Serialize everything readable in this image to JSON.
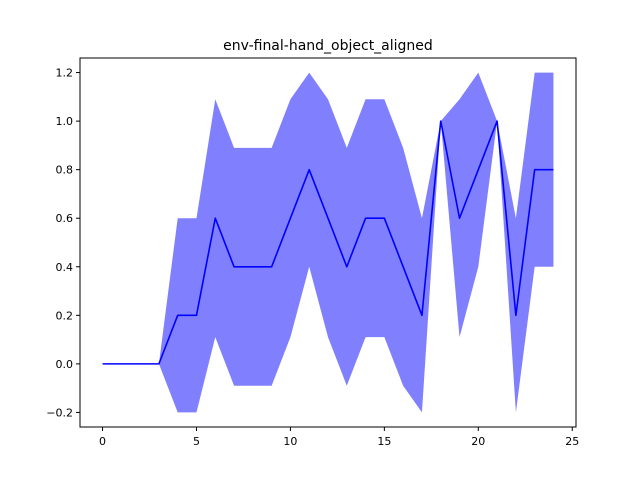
{
  "chart_data": {
    "type": "line",
    "title": "env-final-hand_object_aligned",
    "xlabel": "",
    "ylabel": "",
    "xlim": [
      -1.2,
      25.2
    ],
    "ylim": [
      -0.26,
      1.26
    ],
    "xticks": [
      0,
      5,
      10,
      15,
      20,
      25
    ],
    "yticks": [
      -0.2,
      0.0,
      0.2,
      0.4,
      0.6,
      0.8,
      1.0,
      1.2
    ],
    "xtick_labels": [
      "0",
      "5",
      "10",
      "15",
      "20",
      "25"
    ],
    "ytick_labels": [
      "−0.2",
      "0.0",
      "0.2",
      "0.4",
      "0.6",
      "0.8",
      "1.0",
      "1.2"
    ],
    "grid": false,
    "legend": "none",
    "series": [
      {
        "x": [
          0,
          1,
          2,
          3,
          4,
          5,
          6,
          7,
          8,
          9,
          10,
          11,
          12,
          13,
          14,
          15,
          16,
          17,
          18,
          19,
          20,
          21,
          22,
          23,
          24
        ],
        "mean": [
          0,
          0,
          0,
          0,
          0.2,
          0.2,
          0.6,
          0.4,
          0.4,
          0.4,
          0.6,
          0.8,
          0.6,
          0.4,
          0.6,
          0.6,
          0.4,
          0.2,
          1.0,
          0.6,
          0.8,
          1.0,
          0.2,
          0.8,
          0.8
        ],
        "upper": [
          0,
          0,
          0,
          0,
          0.6,
          0.6,
          1.09,
          0.89,
          0.89,
          0.89,
          1.09,
          1.2,
          1.09,
          0.89,
          1.09,
          1.09,
          0.89,
          0.6,
          1.0,
          1.09,
          1.2,
          1.0,
          0.6,
          1.2,
          1.2
        ],
        "lower": [
          0,
          0,
          0,
          0,
          -0.2,
          -0.2,
          0.11,
          -0.09,
          -0.09,
          -0.09,
          0.11,
          0.4,
          0.11,
          -0.09,
          0.11,
          0.11,
          -0.09,
          -0.2,
          1.0,
          0.11,
          0.4,
          1.0,
          -0.2,
          0.4,
          0.4
        ],
        "line_color": "#0000ff",
        "band_color": "#8080ff"
      }
    ]
  }
}
